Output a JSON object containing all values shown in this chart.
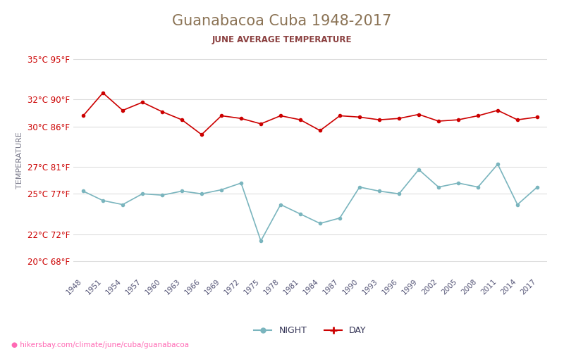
{
  "title": "Guanabacoa Cuba 1948-2017",
  "subtitle": "JUNE AVERAGE TEMPERATURE",
  "ylabel": "TEMPERATURE",
  "xlabel_url": "hikersbay.com/climate/june/cuba/guanabacoa",
  "years": [
    1948,
    1951,
    1954,
    1957,
    1960,
    1963,
    1966,
    1969,
    1972,
    1975,
    1978,
    1981,
    1984,
    1987,
    1990,
    1993,
    1996,
    1999,
    2002,
    2005,
    2008,
    2011,
    2014,
    2017
  ],
  "day_temps": [
    30.8,
    32.5,
    31.2,
    31.8,
    31.1,
    30.5,
    29.4,
    30.8,
    30.6,
    30.2,
    30.8,
    30.5,
    29.7,
    30.8,
    30.7,
    30.5,
    30.6,
    30.9,
    30.4,
    30.5,
    30.8,
    31.2,
    30.5,
    30.7
  ],
  "night_temps": [
    25.2,
    24.5,
    24.2,
    25.0,
    24.9,
    25.2,
    25.0,
    25.3,
    25.8,
    21.5,
    24.2,
    23.5,
    22.8,
    23.2,
    25.5,
    25.2,
    25.0,
    26.8,
    25.5,
    25.8,
    25.5,
    27.2,
    24.2,
    25.5
  ],
  "yticks_c": [
    20,
    22,
    25,
    27,
    30,
    32,
    35
  ],
  "yticks_f": [
    68,
    72,
    77,
    81,
    86,
    90,
    95
  ],
  "ylim": [
    19.0,
    36.0
  ],
  "day_color": "#cc0000",
  "night_color": "#7ab5be",
  "title_color": "#8B7355",
  "subtitle_color": "#8B4040",
  "tick_color": "#cc0000",
  "grid_color": "#dddddd",
  "bg_color": "#ffffff",
  "legend_night_color": "#7ab5be",
  "legend_day_color": "#cc0000"
}
